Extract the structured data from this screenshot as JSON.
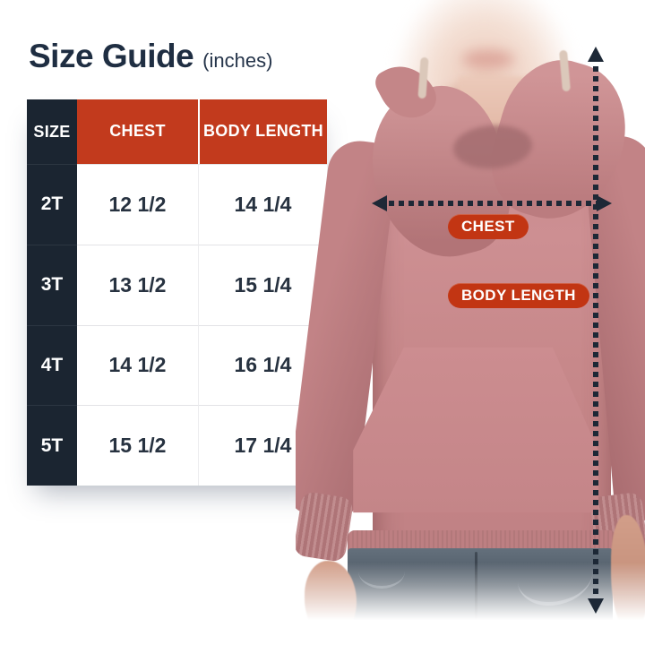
{
  "page": {
    "title": "Size Guide",
    "title_unit": "(inches)"
  },
  "size_table": {
    "columns": [
      "SIZE",
      "CHEST",
      "BODY LENGTH"
    ],
    "rows": [
      {
        "size": "2T",
        "chest": "12 1/2",
        "body_length": "14 1/4"
      },
      {
        "size": "3T",
        "chest": "13 1/2",
        "body_length": "15 1/4"
      },
      {
        "size": "4T",
        "chest": "14 1/2",
        "body_length": "16 1/4"
      },
      {
        "size": "5T",
        "chest": "15 1/2",
        "body_length": "17 1/4"
      }
    ]
  },
  "diagram": {
    "chest_label": "CHEST",
    "body_length_label": "BODY LENGTH",
    "subject": "child model wearing dusty-rose pullover hoodie with kangaroo pocket and jeans",
    "chest_arrow": "horizontal dotted double-headed arrow across chest",
    "body_length_arrow": "vertical dotted double-headed arrow from shoulder to hem"
  },
  "colors": {
    "accent_red_header": "#c23a1d",
    "accent_red_pill": "#c23513",
    "navy_dark": "#1b2531",
    "navy_text": "#1f2e42",
    "hoodie_pink": "#c68789",
    "denim_blue": "#4a5662"
  }
}
